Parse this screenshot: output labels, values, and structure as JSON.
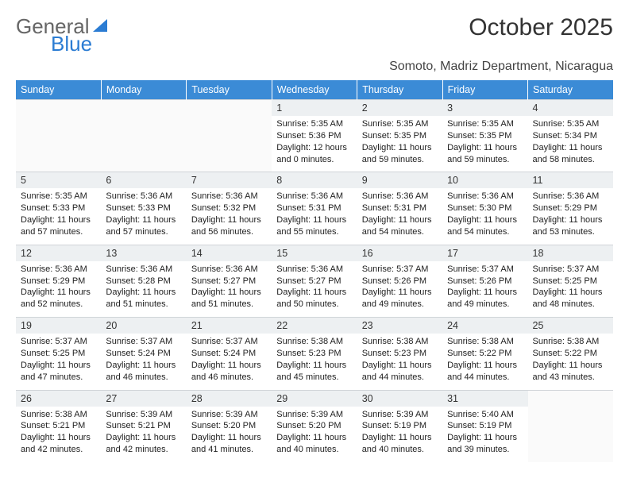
{
  "logo": {
    "text1": "General",
    "text2": "Blue"
  },
  "title": "October 2025",
  "location": "Somoto, Madriz Department, Nicaragua",
  "colors": {
    "header_bg": "#3b8bd6",
    "header_text": "#ffffff",
    "daynum_bg": "#edf0f2",
    "text": "#222222",
    "logo_blue": "#2b7cd3"
  },
  "day_headers": [
    "Sunday",
    "Monday",
    "Tuesday",
    "Wednesday",
    "Thursday",
    "Friday",
    "Saturday"
  ],
  "weeks": [
    [
      null,
      null,
      null,
      {
        "n": "1",
        "sr": "5:35 AM",
        "ss": "5:36 PM",
        "dl": "12 hours and 0 minutes."
      },
      {
        "n": "2",
        "sr": "5:35 AM",
        "ss": "5:35 PM",
        "dl": "11 hours and 59 minutes."
      },
      {
        "n": "3",
        "sr": "5:35 AM",
        "ss": "5:35 PM",
        "dl": "11 hours and 59 minutes."
      },
      {
        "n": "4",
        "sr": "5:35 AM",
        "ss": "5:34 PM",
        "dl": "11 hours and 58 minutes."
      }
    ],
    [
      {
        "n": "5",
        "sr": "5:35 AM",
        "ss": "5:33 PM",
        "dl": "11 hours and 57 minutes."
      },
      {
        "n": "6",
        "sr": "5:36 AM",
        "ss": "5:33 PM",
        "dl": "11 hours and 57 minutes."
      },
      {
        "n": "7",
        "sr": "5:36 AM",
        "ss": "5:32 PM",
        "dl": "11 hours and 56 minutes."
      },
      {
        "n": "8",
        "sr": "5:36 AM",
        "ss": "5:31 PM",
        "dl": "11 hours and 55 minutes."
      },
      {
        "n": "9",
        "sr": "5:36 AM",
        "ss": "5:31 PM",
        "dl": "11 hours and 54 minutes."
      },
      {
        "n": "10",
        "sr": "5:36 AM",
        "ss": "5:30 PM",
        "dl": "11 hours and 54 minutes."
      },
      {
        "n": "11",
        "sr": "5:36 AM",
        "ss": "5:29 PM",
        "dl": "11 hours and 53 minutes."
      }
    ],
    [
      {
        "n": "12",
        "sr": "5:36 AM",
        "ss": "5:29 PM",
        "dl": "11 hours and 52 minutes."
      },
      {
        "n": "13",
        "sr": "5:36 AM",
        "ss": "5:28 PM",
        "dl": "11 hours and 51 minutes."
      },
      {
        "n": "14",
        "sr": "5:36 AM",
        "ss": "5:27 PM",
        "dl": "11 hours and 51 minutes."
      },
      {
        "n": "15",
        "sr": "5:36 AM",
        "ss": "5:27 PM",
        "dl": "11 hours and 50 minutes."
      },
      {
        "n": "16",
        "sr": "5:37 AM",
        "ss": "5:26 PM",
        "dl": "11 hours and 49 minutes."
      },
      {
        "n": "17",
        "sr": "5:37 AM",
        "ss": "5:26 PM",
        "dl": "11 hours and 49 minutes."
      },
      {
        "n": "18",
        "sr": "5:37 AM",
        "ss": "5:25 PM",
        "dl": "11 hours and 48 minutes."
      }
    ],
    [
      {
        "n": "19",
        "sr": "5:37 AM",
        "ss": "5:25 PM",
        "dl": "11 hours and 47 minutes."
      },
      {
        "n": "20",
        "sr": "5:37 AM",
        "ss": "5:24 PM",
        "dl": "11 hours and 46 minutes."
      },
      {
        "n": "21",
        "sr": "5:37 AM",
        "ss": "5:24 PM",
        "dl": "11 hours and 46 minutes."
      },
      {
        "n": "22",
        "sr": "5:38 AM",
        "ss": "5:23 PM",
        "dl": "11 hours and 45 minutes."
      },
      {
        "n": "23",
        "sr": "5:38 AM",
        "ss": "5:23 PM",
        "dl": "11 hours and 44 minutes."
      },
      {
        "n": "24",
        "sr": "5:38 AM",
        "ss": "5:22 PM",
        "dl": "11 hours and 44 minutes."
      },
      {
        "n": "25",
        "sr": "5:38 AM",
        "ss": "5:22 PM",
        "dl": "11 hours and 43 minutes."
      }
    ],
    [
      {
        "n": "26",
        "sr": "5:38 AM",
        "ss": "5:21 PM",
        "dl": "11 hours and 42 minutes."
      },
      {
        "n": "27",
        "sr": "5:39 AM",
        "ss": "5:21 PM",
        "dl": "11 hours and 42 minutes."
      },
      {
        "n": "28",
        "sr": "5:39 AM",
        "ss": "5:20 PM",
        "dl": "11 hours and 41 minutes."
      },
      {
        "n": "29",
        "sr": "5:39 AM",
        "ss": "5:20 PM",
        "dl": "11 hours and 40 minutes."
      },
      {
        "n": "30",
        "sr": "5:39 AM",
        "ss": "5:19 PM",
        "dl": "11 hours and 40 minutes."
      },
      {
        "n": "31",
        "sr": "5:40 AM",
        "ss": "5:19 PM",
        "dl": "11 hours and 39 minutes."
      },
      null
    ]
  ],
  "labels": {
    "sunrise": "Sunrise: ",
    "sunset": "Sunset: ",
    "daylight": "Daylight: "
  }
}
